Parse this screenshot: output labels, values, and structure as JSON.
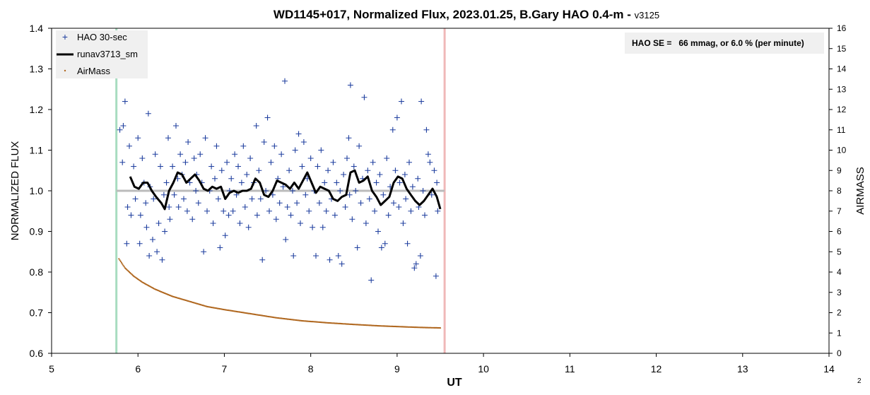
{
  "chart_data": {
    "type": "scatter",
    "title": "WD1145+017, Normalized Flux, 2023.01.25, B.Gary HAO 0.4-m - ",
    "title_suffix": "v3125",
    "xlabel": "UT",
    "ylabel": "NORMALIZED FLUX",
    "y2label": "AIRMASS",
    "xlim": [
      5,
      14
    ],
    "ylim": [
      0.6,
      1.4
    ],
    "y2lim": [
      0,
      16
    ],
    "x_ticks": [
      "5",
      "6",
      "7",
      "8",
      "9",
      "10",
      "11",
      "12",
      "13",
      "14"
    ],
    "y_ticks": [
      "0.6",
      "0.7",
      "0.8",
      "0.9",
      "1.0",
      "1.1",
      "1.2",
      "1.3",
      "1.4"
    ],
    "y2_ticks": [
      "0",
      "1",
      "2",
      "3",
      "4",
      "5",
      "6",
      "7",
      "8",
      "9",
      "10",
      "11",
      "12",
      "13",
      "14",
      "15",
      "16"
    ],
    "grid": false,
    "legend_position": "top-left",
    "corner_label": "2",
    "annotation": "HAO SE =   66 mmag, or 6.0 % (per minute)",
    "reference_line": {
      "y": 1.0,
      "x_start": 5.75,
      "x_end": 9.55,
      "color": "#bbbbbb"
    },
    "vertical_markers": [
      {
        "x": 5.75,
        "color": "#a8dcc0"
      },
      {
        "x": 9.55,
        "color": "#f0b8b8"
      }
    ],
    "series": [
      {
        "name": "HAO 30-sec",
        "marker": "plus",
        "color": "#1f3f9f",
        "points": [
          [
            5.79,
            1.15
          ],
          [
            5.82,
            1.07
          ],
          [
            5.83,
            1.16
          ],
          [
            5.85,
            1.22
          ],
          [
            5.87,
            0.87
          ],
          [
            5.88,
            0.96
          ],
          [
            5.9,
            1.11
          ],
          [
            5.92,
            0.94
          ],
          [
            5.95,
            1.06
          ],
          [
            5.97,
            0.98
          ],
          [
            6.0,
            1.13
          ],
          [
            6.02,
            0.87
          ],
          [
            6.03,
            0.94
          ],
          [
            6.05,
            1.08
          ],
          [
            6.07,
            1.02
          ],
          [
            6.09,
            0.97
          ],
          [
            6.1,
            0.91
          ],
          [
            6.12,
            1.19
          ],
          [
            6.13,
            0.84
          ],
          [
            6.14,
            1.01
          ],
          [
            6.17,
            0.88
          ],
          [
            6.18,
            0.98
          ],
          [
            6.2,
            1.09
          ],
          [
            6.22,
            0.85
          ],
          [
            6.24,
            0.92
          ],
          [
            6.26,
            1.06
          ],
          [
            6.28,
            0.83
          ],
          [
            6.3,
            0.99
          ],
          [
            6.31,
            0.9
          ],
          [
            6.33,
            1.02
          ],
          [
            6.35,
            1.13
          ],
          [
            6.36,
            0.96
          ],
          [
            6.37,
            0.93
          ],
          [
            6.4,
            1.06
          ],
          [
            6.42,
            0.99
          ],
          [
            6.44,
            1.16
          ],
          [
            6.46,
            1.03
          ],
          [
            6.47,
            0.96
          ],
          [
            6.49,
            1.09
          ],
          [
            6.51,
            1.04
          ],
          [
            6.53,
            0.98
          ],
          [
            6.55,
            1.07
          ],
          [
            6.57,
            0.95
          ],
          [
            6.58,
            1.12
          ],
          [
            6.6,
            1.02
          ],
          [
            6.63,
            0.93
          ],
          [
            6.65,
            1.08
          ],
          [
            6.67,
            1.0
          ],
          [
            6.68,
            1.04
          ],
          [
            6.7,
            0.97
          ],
          [
            6.72,
            1.09
          ],
          [
            6.74,
            1.02
          ],
          [
            6.76,
            0.85
          ],
          [
            6.78,
            1.13
          ],
          [
            6.8,
            0.95
          ],
          [
            6.83,
            1.0
          ],
          [
            6.85,
            1.06
          ],
          [
            6.87,
            0.92
          ],
          [
            6.89,
            1.03
          ],
          [
            6.91,
            1.11
          ],
          [
            6.93,
            0.98
          ],
          [
            6.95,
            0.86
          ],
          [
            6.97,
            1.05
          ],
          [
            6.99,
            0.95
          ],
          [
            7.01,
            0.89
          ],
          [
            7.03,
            1.07
          ],
          [
            7.05,
            0.94
          ],
          [
            7.06,
            1.0
          ],
          [
            7.08,
            1.03
          ],
          [
            7.1,
            0.95
          ],
          [
            7.12,
            1.09
          ],
          [
            7.14,
            0.99
          ],
          [
            7.16,
            1.06
          ],
          [
            7.18,
            0.92
          ],
          [
            7.2,
            1.02
          ],
          [
            7.22,
            1.11
          ],
          [
            7.24,
            0.96
          ],
          [
            7.26,
            1.04
          ],
          [
            7.28,
            0.91
          ],
          [
            7.3,
            1.08
          ],
          [
            7.32,
            0.98
          ],
          [
            7.34,
            1.02
          ],
          [
            7.37,
            1.16
          ],
          [
            7.38,
            0.94
          ],
          [
            7.4,
            1.05
          ],
          [
            7.42,
            0.98
          ],
          [
            7.44,
            0.83
          ],
          [
            7.46,
            1.12
          ],
          [
            7.48,
            1.0
          ],
          [
            7.5,
            1.18
          ],
          [
            7.52,
            0.95
          ],
          [
            7.54,
            1.07
          ],
          [
            7.56,
            0.99
          ],
          [
            7.58,
            1.11
          ],
          [
            7.6,
            0.93
          ],
          [
            7.62,
            1.03
          ],
          [
            7.64,
            0.97
          ],
          [
            7.66,
            1.09
          ],
          [
            7.68,
            1.01
          ],
          [
            7.7,
            1.27
          ],
          [
            7.71,
            0.88
          ],
          [
            7.73,
            0.96
          ],
          [
            7.75,
            1.05
          ],
          [
            7.77,
            0.94
          ],
          [
            7.79,
            1.0
          ],
          [
            7.8,
            0.84
          ],
          [
            7.82,
            1.1
          ],
          [
            7.84,
            0.97
          ],
          [
            7.86,
            1.14
          ],
          [
            7.88,
            0.92
          ],
          [
            7.9,
            1.06
          ],
          [
            7.92,
            1.12
          ],
          [
            7.94,
            0.99
          ],
          [
            7.96,
            1.03
          ],
          [
            7.98,
            0.95
          ],
          [
            8.0,
            1.08
          ],
          [
            8.02,
            0.91
          ],
          [
            8.04,
            1.0
          ],
          [
            8.06,
            0.84
          ],
          [
            8.08,
            1.06
          ],
          [
            8.1,
            0.97
          ],
          [
            8.12,
            1.1
          ],
          [
            8.14,
            0.91
          ],
          [
            8.16,
            1.02
          ],
          [
            8.18,
            0.95
          ],
          [
            8.2,
            1.05
          ],
          [
            8.22,
            0.83
          ],
          [
            8.24,
            0.98
          ],
          [
            8.26,
            1.07
          ],
          [
            8.28,
            0.94
          ],
          [
            8.3,
            1.02
          ],
          [
            8.32,
            0.84
          ],
          [
            8.34,
            1.0
          ],
          [
            8.36,
            0.82
          ],
          [
            8.38,
            1.04
          ],
          [
            8.4,
            0.96
          ],
          [
            8.42,
            1.08
          ],
          [
            8.44,
            1.13
          ],
          [
            8.45,
            0.99
          ],
          [
            8.46,
            1.26
          ],
          [
            8.48,
            0.93
          ],
          [
            8.5,
            1.06
          ],
          [
            8.52,
            1.0
          ],
          [
            8.54,
            0.86
          ],
          [
            8.56,
            1.11
          ],
          [
            8.58,
            0.97
          ],
          [
            8.6,
            1.03
          ],
          [
            8.62,
            1.23
          ],
          [
            8.64,
            0.92
          ],
          [
            8.66,
            1.05
          ],
          [
            8.68,
            0.98
          ],
          [
            8.7,
            0.78
          ],
          [
            8.72,
            1.07
          ],
          [
            8.74,
            0.95
          ],
          [
            8.76,
            1.02
          ],
          [
            8.78,
            0.9
          ],
          [
            8.8,
            1.04
          ],
          [
            8.82,
            0.86
          ],
          [
            8.84,
            0.99
          ],
          [
            8.86,
            0.87
          ],
          [
            8.88,
            1.08
          ],
          [
            8.9,
            0.94
          ],
          [
            8.92,
            1.01
          ],
          [
            8.95,
            1.15
          ],
          [
            8.96,
            0.97
          ],
          [
            8.98,
            1.05
          ],
          [
            9.0,
            1.18
          ],
          [
            9.02,
            0.96
          ],
          [
            9.03,
            1.02
          ],
          [
            9.05,
            1.22
          ],
          [
            9.07,
            0.92
          ],
          [
            9.09,
            1.04
          ],
          [
            9.1,
            0.98
          ],
          [
            9.12,
            0.87
          ],
          [
            9.14,
            1.07
          ],
          [
            9.16,
            0.95
          ],
          [
            9.18,
            1.01
          ],
          [
            9.2,
            0.81
          ],
          [
            9.22,
            0.82
          ],
          [
            9.24,
            1.03
          ],
          [
            9.25,
            0.96
          ],
          [
            9.27,
            0.84
          ],
          [
            9.28,
            1.22
          ],
          [
            9.3,
            1.0
          ],
          [
            9.32,
            0.94
          ],
          [
            9.34,
            1.15
          ],
          [
            9.36,
            1.09
          ],
          [
            9.38,
            1.07
          ],
          [
            9.4,
            0.99
          ],
          [
            9.43,
            1.05
          ],
          [
            9.45,
            0.79
          ],
          [
            9.46,
            1.02
          ],
          [
            9.47,
            0.95
          ]
        ]
      },
      {
        "name": "runav3713_sm",
        "marker": "none",
        "color": "#000000",
        "points": [
          [
            5.91,
            1.035
          ],
          [
            5.96,
            1.01
          ],
          [
            6.01,
            1.005
          ],
          [
            6.06,
            1.02
          ],
          [
            6.11,
            1.02
          ],
          [
            6.16,
            1.0
          ],
          [
            6.21,
            0.985
          ],
          [
            6.27,
            0.97
          ],
          [
            6.31,
            0.955
          ],
          [
            6.36,
            1.0
          ],
          [
            6.41,
            1.02
          ],
          [
            6.46,
            1.045
          ],
          [
            6.51,
            1.04
          ],
          [
            6.56,
            1.02
          ],
          [
            6.61,
            1.03
          ],
          [
            6.66,
            1.04
          ],
          [
            6.71,
            1.025
          ],
          [
            6.76,
            1.005
          ],
          [
            6.81,
            1.0
          ],
          [
            6.86,
            1.01
          ],
          [
            6.91,
            1.005
          ],
          [
            6.96,
            1.01
          ],
          [
            7.01,
            0.98
          ],
          [
            7.06,
            0.995
          ],
          [
            7.11,
            1.0
          ],
          [
            7.16,
            0.995
          ],
          [
            7.21,
            1.0
          ],
          [
            7.26,
            1.0
          ],
          [
            7.31,
            1.005
          ],
          [
            7.36,
            1.03
          ],
          [
            7.41,
            1.02
          ],
          [
            7.46,
            0.99
          ],
          [
            7.51,
            0.985
          ],
          [
            7.56,
            1.0
          ],
          [
            7.61,
            1.025
          ],
          [
            7.66,
            1.02
          ],
          [
            7.71,
            1.015
          ],
          [
            7.76,
            1.005
          ],
          [
            7.81,
            1.02
          ],
          [
            7.86,
            1.005
          ],
          [
            7.91,
            1.025
          ],
          [
            7.96,
            1.045
          ],
          [
            8.01,
            1.02
          ],
          [
            8.06,
            0.995
          ],
          [
            8.11,
            1.01
          ],
          [
            8.16,
            1.005
          ],
          [
            8.21,
            1.0
          ],
          [
            8.26,
            0.98
          ],
          [
            8.31,
            0.975
          ],
          [
            8.36,
            0.985
          ],
          [
            8.41,
            0.99
          ],
          [
            8.46,
            1.045
          ],
          [
            8.51,
            1.05
          ],
          [
            8.56,
            1.02
          ],
          [
            8.61,
            1.025
          ],
          [
            8.66,
            1.035
          ],
          [
            8.71,
            1.0
          ],
          [
            8.76,
            0.985
          ],
          [
            8.81,
            0.965
          ],
          [
            8.86,
            0.975
          ],
          [
            8.91,
            0.985
          ],
          [
            8.96,
            1.02
          ],
          [
            9.01,
            1.035
          ],
          [
            9.06,
            1.03
          ],
          [
            9.11,
            1.005
          ],
          [
            9.16,
            0.99
          ],
          [
            9.21,
            0.975
          ],
          [
            9.26,
            0.965
          ],
          [
            9.31,
            0.975
          ],
          [
            9.36,
            0.99
          ],
          [
            9.41,
            1.005
          ],
          [
            9.46,
            0.985
          ],
          [
            9.5,
            0.955
          ]
        ]
      },
      {
        "name": "AirMass",
        "marker": "dot",
        "color": "#b06820",
        "axis": "y2",
        "x": [
          5.78,
          5.85,
          5.95,
          6.05,
          6.2,
          6.4,
          6.6,
          6.8,
          7.0,
          7.3,
          7.6,
          7.9,
          8.2,
          8.5,
          8.8,
          9.1,
          9.3,
          9.5
        ],
        "y": [
          4.65,
          4.2,
          3.8,
          3.5,
          3.15,
          2.8,
          2.55,
          2.3,
          2.15,
          1.95,
          1.75,
          1.6,
          1.5,
          1.42,
          1.35,
          1.3,
          1.27,
          1.25
        ]
      }
    ]
  }
}
